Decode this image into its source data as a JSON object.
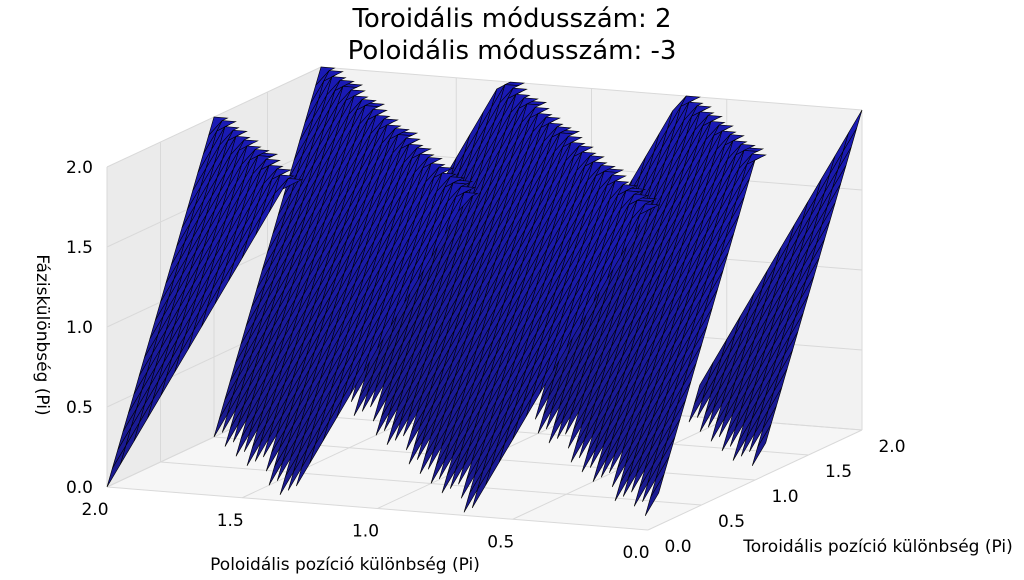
{
  "chart_data": {
    "type": "surface3d",
    "title_lines": [
      "Toroidális módusszám: 2",
      "Poloidális módusszám: -3"
    ],
    "xlabel": "Poloidális pozíció különbség (Pi)",
    "ylabel": "Toroidális pozíció különbség (Pi)",
    "zlabel": "Fáziskülönbség (Pi)",
    "xlim": [
      0.0,
      2.0
    ],
    "ylim": [
      0.0,
      2.0
    ],
    "zlim": [
      0.0,
      2.0
    ],
    "x_ticks": [
      "0.0",
      "0.5",
      "1.0",
      "1.5",
      "2.0"
    ],
    "y_ticks": [
      "0.0",
      "0.5",
      "1.0",
      "1.5",
      "2.0"
    ],
    "z_ticks": [
      "0.0",
      "0.5",
      "1.0",
      "1.5",
      "2.0"
    ],
    "toroidal_mode_number": 2,
    "poloidal_mode_number": -3,
    "surface_formula": "mod(2*y - 3*x, 2)",
    "surface_color": "#1a1aa0",
    "edge_color": "#000000",
    "grid": true
  }
}
